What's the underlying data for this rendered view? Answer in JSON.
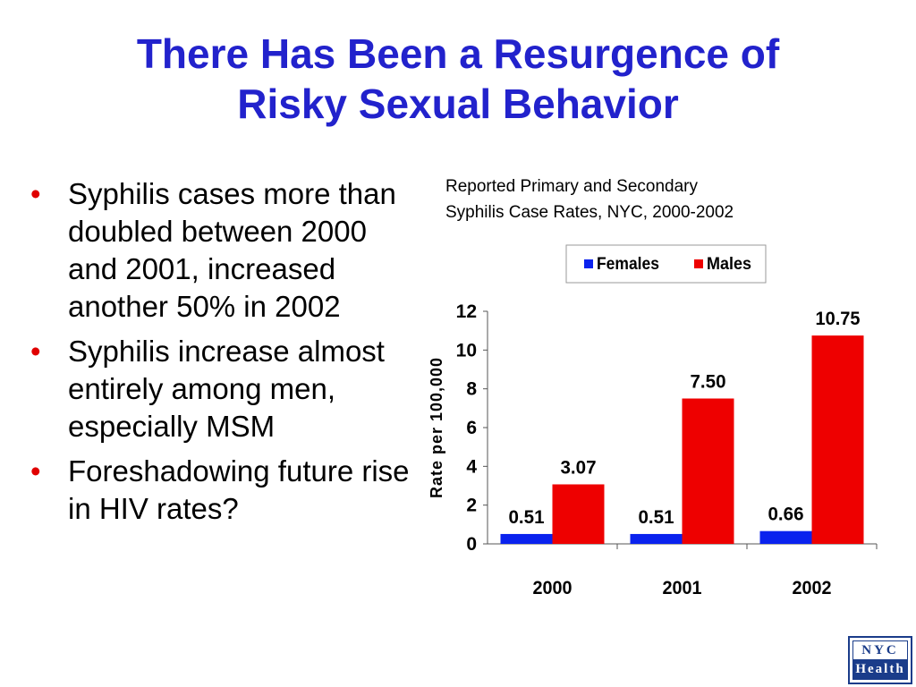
{
  "title": {
    "line1": "There Has Been a Resurgence of",
    "line2": "Risky Sexual Behavior"
  },
  "bullets": [
    "Syphilis cases more than doubled between 2000 and 2001, increased another 50% in 2002",
    "Syphilis increase almost entirely among men, especially MSM",
    "Foreshadowing future rise in HIV rates?"
  ],
  "bullet_symbol": "•",
  "logo": {
    "line1": "NYC",
    "line2": "Health"
  },
  "colors": {
    "title": "#2222cc",
    "bullet": "#e00000",
    "females": "#0a22ee",
    "males": "#ee0000",
    "logo": "#1a3c8a"
  },
  "chart_data": {
    "type": "bar",
    "title": "Reported Primary and Secondary",
    "subtitle": "Syphilis Case Rates, NYC, 2000-2002",
    "xlabel": "",
    "ylabel": "Rate per 100,000",
    "categories": [
      "2000",
      "2001",
      "2002"
    ],
    "series": [
      {
        "name": "Females",
        "values": [
          0.51,
          0.51,
          0.66
        ],
        "labels": [
          "0.51",
          "0.51",
          "0.66"
        ],
        "color": "#0a22ee"
      },
      {
        "name": "Males",
        "values": [
          3.07,
          7.5,
          10.75
        ],
        "labels": [
          "3.07",
          "7.50",
          "10.75"
        ],
        "color": "#ee0000"
      }
    ],
    "ylim": [
      0,
      12
    ],
    "yticks": [
      0,
      2,
      4,
      6,
      8,
      10,
      12
    ],
    "grid": false,
    "legend": "top"
  }
}
